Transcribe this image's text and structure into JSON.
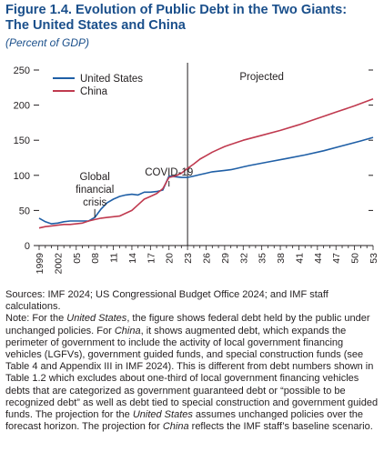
{
  "header": {
    "title_line1": "Figure 1.4. Evolution of Public Debt in the Two Giants:",
    "title_line2": "The United States and China",
    "subtitle": "(Percent of GDP)"
  },
  "colors": {
    "us": "#1f5fa6",
    "china": "#c03a4f",
    "title": "#1a4f8b",
    "axis": "#231f20"
  },
  "chart_data": {
    "type": "line",
    "title": "Evolution of Public Debt in the Two Giants: The United States and China",
    "ylabel": "Percent of GDP",
    "xlabel": "",
    "xlim": [
      1999,
      2053
    ],
    "ylim": [
      0,
      250
    ],
    "yticks": [
      0,
      50,
      100,
      150,
      200,
      250
    ],
    "xtick_labels": [
      {
        "x": 1999,
        "label": "1999"
      },
      {
        "x": 2002,
        "label": "2002"
      },
      {
        "x": 2005,
        "label": "05"
      },
      {
        "x": 2008,
        "label": "08"
      },
      {
        "x": 2011,
        "label": "11"
      },
      {
        "x": 2014,
        "label": "14"
      },
      {
        "x": 2017,
        "label": "17"
      },
      {
        "x": 2020,
        "label": "20"
      },
      {
        "x": 2023,
        "label": "23"
      },
      {
        "x": 2026,
        "label": "26"
      },
      {
        "x": 2029,
        "label": "29"
      },
      {
        "x": 2032,
        "label": "32"
      },
      {
        "x": 2035,
        "label": "35"
      },
      {
        "x": 2038,
        "label": "38"
      },
      {
        "x": 2041,
        "label": "41"
      },
      {
        "x": 2044,
        "label": "44"
      },
      {
        "x": 2047,
        "label": "47"
      },
      {
        "x": 2050,
        "label": "50"
      },
      {
        "x": 2053,
        "label": "53"
      }
    ],
    "grid": false,
    "legend_position": "top-left",
    "projection_start": 2023,
    "series": [
      {
        "name": "United States",
        "color": "#1f5fa6",
        "points": [
          [
            1999,
            39
          ],
          [
            2000,
            34
          ],
          [
            2001,
            31
          ],
          [
            2002,
            32
          ],
          [
            2003,
            34
          ],
          [
            2004,
            35
          ],
          [
            2005,
            35
          ],
          [
            2006,
            35
          ],
          [
            2007,
            35
          ],
          [
            2008,
            40
          ],
          [
            2009,
            52
          ],
          [
            2010,
            61
          ],
          [
            2011,
            66
          ],
          [
            2012,
            70
          ],
          [
            2013,
            72
          ],
          [
            2014,
            73
          ],
          [
            2015,
            72
          ],
          [
            2016,
            76
          ],
          [
            2017,
            76
          ],
          [
            2018,
            77
          ],
          [
            2019,
            79
          ],
          [
            2020,
            99
          ],
          [
            2021,
            98
          ],
          [
            2022,
            97
          ],
          [
            2023,
            97
          ],
          [
            2024,
            99
          ],
          [
            2025,
            101
          ],
          [
            2026,
            103
          ],
          [
            2027,
            105
          ],
          [
            2028,
            106
          ],
          [
            2029,
            107
          ],
          [
            2030,
            108
          ],
          [
            2031,
            110
          ],
          [
            2032,
            112
          ],
          [
            2033,
            114
          ],
          [
            2036,
            119
          ],
          [
            2039,
            124
          ],
          [
            2042,
            129
          ],
          [
            2045,
            135
          ],
          [
            2048,
            142
          ],
          [
            2051,
            149
          ],
          [
            2053,
            154
          ]
        ]
      },
      {
        "name": "China",
        "color": "#c03a4f",
        "points": [
          [
            1999,
            25
          ],
          [
            2000,
            27
          ],
          [
            2001,
            28
          ],
          [
            2002,
            29
          ],
          [
            2003,
            30
          ],
          [
            2004,
            30
          ],
          [
            2005,
            31
          ],
          [
            2006,
            32
          ],
          [
            2007,
            35
          ],
          [
            2008,
            37
          ],
          [
            2009,
            39
          ],
          [
            2010,
            40
          ],
          [
            2011,
            41
          ],
          [
            2012,
            42
          ],
          [
            2013,
            46
          ],
          [
            2014,
            50
          ],
          [
            2015,
            58
          ],
          [
            2016,
            66
          ],
          [
            2017,
            70
          ],
          [
            2018,
            74
          ],
          [
            2019,
            81
          ],
          [
            2020,
            97
          ],
          [
            2021,
            99
          ],
          [
            2022,
            103
          ],
          [
            2023,
            110
          ],
          [
            2024,
            116
          ],
          [
            2025,
            123
          ],
          [
            2026,
            128
          ],
          [
            2027,
            133
          ],
          [
            2028,
            137
          ],
          [
            2029,
            141
          ],
          [
            2030,
            144
          ],
          [
            2031,
            147
          ],
          [
            2032,
            150
          ],
          [
            2035,
            157
          ],
          [
            2038,
            164
          ],
          [
            2041,
            172
          ],
          [
            2044,
            181
          ],
          [
            2047,
            190
          ],
          [
            2050,
            199
          ],
          [
            2053,
            209
          ]
        ]
      }
    ],
    "annotations": [
      {
        "lines": [
          "Global",
          "financial",
          "crisis"
        ],
        "x": 2008,
        "y": 93
      },
      {
        "lines": [
          "COVID-19"
        ],
        "x": 2020,
        "y": 100
      },
      {
        "lines": [
          "Projected"
        ],
        "x": 2035,
        "y": 236
      }
    ]
  },
  "notes": {
    "sources": "Sources: IMF 2024; US Congressional Budget Office 2024; and IMF staff calculations.",
    "note_parts": [
      {
        "text": "Note: For the ",
        "italic": false
      },
      {
        "text": "United States",
        "italic": true
      },
      {
        "text": ", the figure shows federal debt held by the public under unchanged policies. For ",
        "italic": false
      },
      {
        "text": "China",
        "italic": true
      },
      {
        "text": ", it shows augmented debt, which expands the perimeter of government to include the activity of local government financing vehicles (LGFVs), government guided funds, and special construction funds (see Table 4 and Appendix III in IMF 2024). This is different from debt numbers shown in Table 1.2 which excludes about one-third of local government financing vehicles debts that are categorized as government guaranteed debt or “possible to be recognized debt” as well as debt tied to special construction and government guided funds. The projection for the ",
        "italic": false
      },
      {
        "text": "United States",
        "italic": true
      },
      {
        "text": " assumes unchanged policies over the forecast horizon. The projection for ",
        "italic": false
      },
      {
        "text": "China",
        "italic": true
      },
      {
        "text": " reflects the IMF staff’s baseline scenario.",
        "italic": false
      }
    ]
  }
}
